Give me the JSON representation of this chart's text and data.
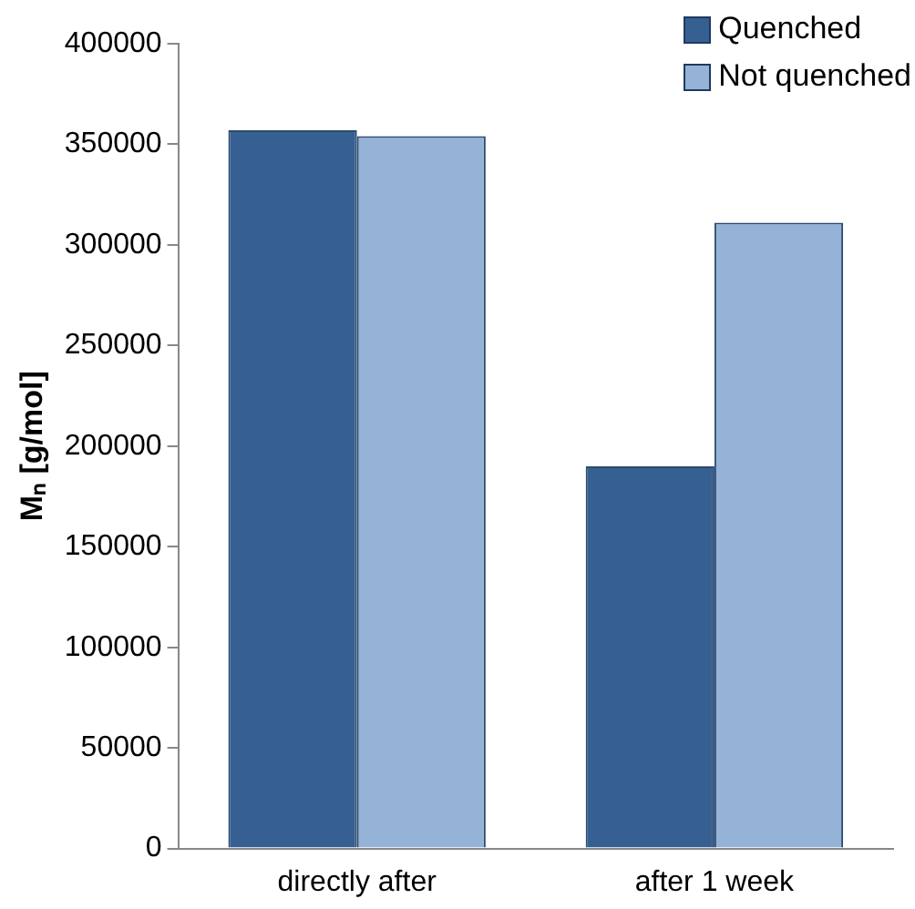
{
  "chart_data": {
    "type": "bar",
    "ylabel": "Mₙ [g/mol]",
    "categories": [
      "directly after",
      "after 1 week"
    ],
    "series": [
      {
        "name": "Quenched",
        "color": "#376092",
        "values": [
          357000,
          190000
        ]
      },
      {
        "name": "Not quenched",
        "color": "#95b3d7",
        "values": [
          354000,
          311000
        ]
      }
    ],
    "ylim": [
      0,
      400000
    ],
    "yticks": [
      0,
      50000,
      100000,
      150000,
      200000,
      250000,
      300000,
      350000,
      400000
    ],
    "grid": false,
    "legend": "top right"
  }
}
